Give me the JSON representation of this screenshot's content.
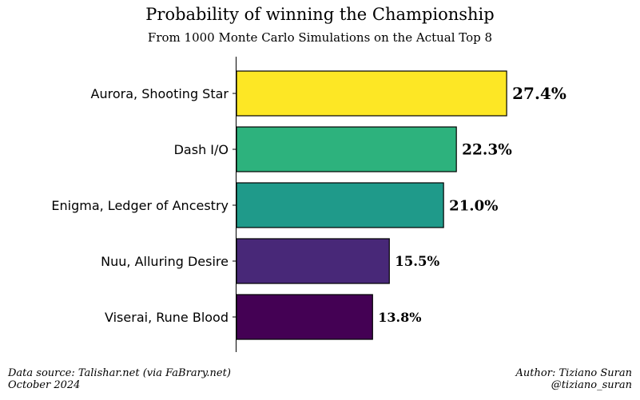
{
  "chart_data": {
    "type": "bar",
    "orientation": "horizontal",
    "title": "Probability of winning the Championship",
    "subtitle": "From 1000 Monte Carlo Simulations on the Actual Top 8",
    "xlabel": "",
    "ylabel": "",
    "categories": [
      "Aurora, Shooting Star",
      "Dash I/O",
      "Enigma, Ledger of Ancestry",
      "Nuu, Alluring Desire",
      "Viserai, Rune Blood"
    ],
    "values": [
      27.4,
      22.3,
      21.0,
      15.5,
      13.8
    ],
    "value_labels": [
      "27.4%",
      "22.3%",
      "21.0%",
      "15.5%",
      "13.8%"
    ],
    "colors": [
      "#fde725",
      "#2db27d",
      "#1f9a8a",
      "#482878",
      "#440154"
    ],
    "xlim": [
      0,
      40
    ],
    "grid": false
  },
  "footer": {
    "source_line1": "Data source: Talishar.net (via FaBrary.net)",
    "source_line2": "October 2024",
    "author_line1": "Author: Tiziano Suran",
    "author_line2": "@tiziano_suran"
  }
}
